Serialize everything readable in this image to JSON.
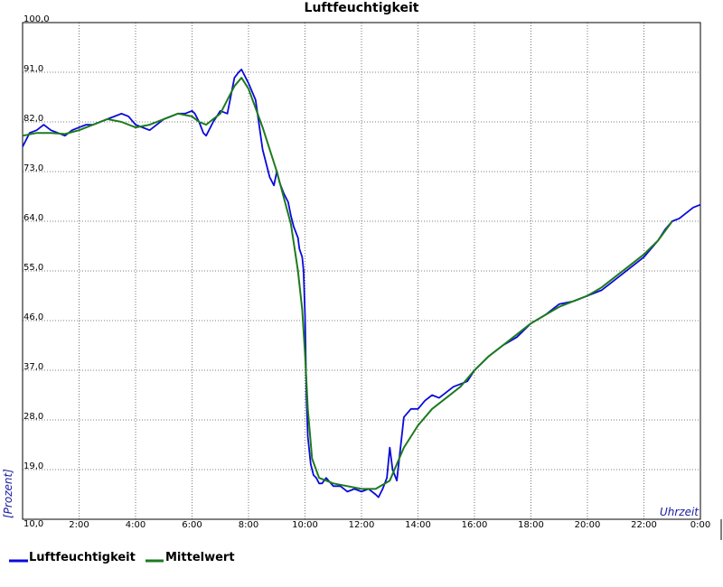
{
  "chart_data": {
    "type": "line",
    "title": "Luftfeuchtigkeit",
    "ylabel": "[Prozent]",
    "xlabel": "Uhrzeit",
    "y_ticks": [
      "10,0",
      "19,0",
      "28,0",
      "37,0",
      "46,0",
      "55,0",
      "64,0",
      "73,0",
      "82,0",
      "91,0",
      "100,0"
    ],
    "x_ticks": [
      "2:00",
      "4:00",
      "6:00",
      "8:00",
      "10:00",
      "12:00",
      "14:00",
      "16:00",
      "18:00",
      "20:00",
      "22:00",
      "0:00"
    ],
    "ylim": [
      10,
      100
    ],
    "xlim_hours": [
      0,
      24
    ],
    "grid": true,
    "legend_position": "bottom-left",
    "colors": {
      "Luftfeuchtigkeit": "#0a0adc",
      "Mittelwert": "#1e7a1e"
    },
    "series": [
      {
        "name": "Luftfeuchtigkeit",
        "x": [
          0,
          0.25,
          0.5,
          0.75,
          1.0,
          1.25,
          1.5,
          1.75,
          2.0,
          2.25,
          2.5,
          2.75,
          3.0,
          3.25,
          3.5,
          3.75,
          4.0,
          4.25,
          4.5,
          4.75,
          5.0,
          5.25,
          5.5,
          5.75,
          6.0,
          6.1,
          6.25,
          6.4,
          6.5,
          6.75,
          7.0,
          7.25,
          7.5,
          7.65,
          7.75,
          8.0,
          8.25,
          8.5,
          8.75,
          8.9,
          9.0,
          9.1,
          9.25,
          9.4,
          9.5,
          9.6,
          9.75,
          9.8,
          9.9,
          9.95,
          10.0,
          10.05,
          10.1,
          10.2,
          10.3,
          10.4,
          10.5,
          10.6,
          10.75,
          11.0,
          11.25,
          11.5,
          11.75,
          12.0,
          12.25,
          12.5,
          12.6,
          12.75,
          12.9,
          13.0,
          13.1,
          13.25,
          13.5,
          13.75,
          14.0,
          14.25,
          14.5,
          14.75,
          15.0,
          15.25,
          15.5,
          15.75,
          16.0,
          16.5,
          17.0,
          17.5,
          18.0,
          18.5,
          19.0,
          19.5,
          20.0,
          20.5,
          21.0,
          21.5,
          22.0,
          22.25,
          22.5,
          22.75,
          23.0,
          23.25,
          23.5,
          23.75,
          24.0
        ],
        "values": [
          77.5,
          80.0,
          80.5,
          81.5,
          80.5,
          80.0,
          79.5,
          80.5,
          81.0,
          81.5,
          81.5,
          82.0,
          82.5,
          83.0,
          83.5,
          83.0,
          81.5,
          81.0,
          80.5,
          81.5,
          82.5,
          83.0,
          83.5,
          83.5,
          84.0,
          83.5,
          82.0,
          80.0,
          79.5,
          82.0,
          84.0,
          83.5,
          90.0,
          91.0,
          91.5,
          89.0,
          86.0,
          77.0,
          72.0,
          70.5,
          73.0,
          71.0,
          69.0,
          67.5,
          65.0,
          63.0,
          61.0,
          59.0,
          57.5,
          55.0,
          47.0,
          32.0,
          25.0,
          20.0,
          18.0,
          17.5,
          16.5,
          16.5,
          17.5,
          16.0,
          16.0,
          15.0,
          15.5,
          15.0,
          15.5,
          14.5,
          14.0,
          15.5,
          17.5,
          23.0,
          19.0,
          17.0,
          28.5,
          30.0,
          30.0,
          31.5,
          32.5,
          32.0,
          33.0,
          34.0,
          34.5,
          35.0,
          37.0,
          39.5,
          41.5,
          43.0,
          45.5,
          47.0,
          49.0,
          49.5,
          50.5,
          51.5,
          53.5,
          55.5,
          57.5,
          59.0,
          60.5,
          62.5,
          64.0,
          64.5,
          65.5,
          66.5,
          67.0
        ]
      },
      {
        "name": "Mittelwert",
        "x": [
          0,
          0.5,
          1.0,
          1.5,
          2.0,
          2.5,
          3.0,
          3.5,
          4.0,
          4.5,
          5.0,
          5.5,
          6.0,
          6.25,
          6.5,
          6.75,
          7.0,
          7.25,
          7.5,
          7.75,
          8.0,
          8.5,
          9.0,
          9.5,
          9.75,
          9.9,
          10.0,
          10.1,
          10.25,
          10.5,
          10.75,
          11.0,
          11.5,
          12.0,
          12.5,
          13.0,
          13.5,
          14.0,
          14.5,
          15.0,
          15.5,
          16.0,
          16.5,
          17.0,
          17.5,
          18.0,
          18.5,
          19.0,
          19.5,
          20.0,
          20.5,
          21.0,
          21.5,
          22.0,
          22.5,
          23.0
        ],
        "values": [
          79.5,
          80.0,
          80.0,
          79.8,
          80.5,
          81.5,
          82.5,
          82.0,
          81.0,
          81.5,
          82.5,
          83.5,
          83.0,
          82.0,
          81.5,
          82.5,
          83.5,
          86.0,
          88.5,
          90.0,
          88.0,
          81.0,
          73.0,
          63.5,
          55.0,
          48.0,
          40.0,
          30.0,
          21.0,
          17.5,
          17.0,
          16.5,
          16.0,
          15.5,
          15.5,
          17.0,
          23.0,
          27.0,
          30.0,
          32.0,
          34.0,
          37.0,
          39.5,
          41.5,
          43.5,
          45.5,
          47.0,
          48.5,
          49.5,
          50.5,
          52.0,
          54.0,
          56.0,
          58.0,
          60.5,
          64.0
        ]
      }
    ]
  }
}
